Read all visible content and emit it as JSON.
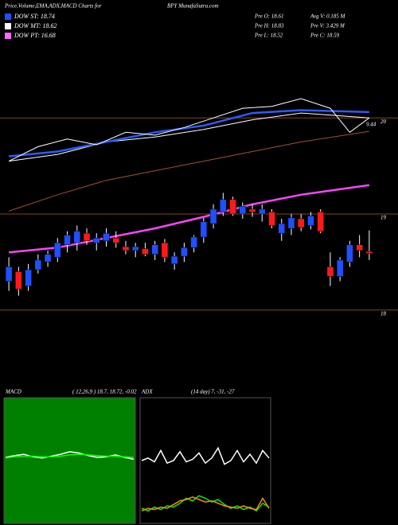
{
  "header": {
    "title": "Price,Volume,EMA,ADX,MACD Charts for",
    "site": "BPY MunafaSutra.com",
    "legend": [
      {
        "label": "DOW ST: 18.74",
        "color": "#1f4fff"
      },
      {
        "label": "DOW MT: 18.62",
        "color": "#ffffff"
      },
      {
        "label": "DOW PT: 16.68",
        "color": "#ff66ff"
      }
    ],
    "stats": [
      "Pre O: 18.61",
      "Avg V: 0.185 M",
      "Pre H: 18.83",
      "Pre V: 3.429 M",
      "Pre L: 18.52",
      "Pre C: 18.59"
    ]
  },
  "chart_data": [
    {
      "type": "candlestick",
      "up_color": "#1f4fff",
      "down_color": "#ff1a1a",
      "level_color": "#8b4513",
      "ylim": [
        17.75,
        20.73
      ],
      "yticks": [
        18,
        19,
        20
      ],
      "annotation": "9.44",
      "open": [
        18.3,
        18.4,
        18.25,
        18.42,
        18.5,
        18.55,
        18.68,
        18.7,
        18.8,
        18.7,
        18.72,
        18.75,
        18.66,
        18.62,
        18.64,
        18.58,
        18.7,
        18.48,
        18.56,
        18.65,
        18.76,
        18.9,
        19.02,
        19.15,
        19.0,
        19.05,
        19.0,
        19.02,
        18.8,
        18.85,
        18.95,
        18.88,
        19.02,
        18.45,
        18.35,
        18.5,
        18.68,
        18.61
      ],
      "high": [
        18.55,
        18.45,
        18.48,
        18.58,
        18.62,
        18.75,
        18.82,
        18.88,
        18.85,
        18.8,
        18.85,
        18.82,
        18.72,
        18.7,
        18.7,
        18.72,
        18.74,
        18.6,
        18.7,
        18.78,
        18.96,
        19.1,
        19.22,
        19.18,
        19.12,
        19.1,
        19.1,
        19.05,
        18.95,
        19.0,
        19.0,
        19.02,
        19.05,
        18.6,
        18.55,
        18.72,
        18.78,
        18.83
      ],
      "low": [
        18.2,
        18.15,
        18.2,
        18.38,
        18.45,
        18.5,
        18.6,
        18.62,
        18.68,
        18.62,
        18.66,
        18.65,
        18.58,
        18.55,
        18.56,
        18.52,
        18.5,
        18.42,
        18.5,
        18.6,
        18.7,
        18.85,
        18.98,
        18.98,
        18.95,
        18.97,
        18.92,
        18.85,
        18.72,
        18.78,
        18.82,
        18.84,
        18.8,
        18.25,
        18.3,
        18.45,
        18.55,
        18.52
      ],
      "close": [
        18.45,
        18.22,
        18.42,
        18.52,
        18.58,
        18.7,
        18.78,
        18.82,
        18.72,
        18.75,
        18.8,
        18.7,
        18.62,
        18.66,
        18.58,
        18.68,
        18.55,
        18.56,
        18.65,
        18.76,
        18.92,
        19.05,
        19.15,
        19.0,
        19.08,
        19.02,
        19.05,
        18.88,
        18.9,
        18.96,
        18.86,
        18.98,
        18.82,
        18.35,
        18.52,
        18.68,
        18.62,
        18.59
      ],
      "series": [
        {
          "color": "#ff44ff",
          "width": 2.5,
          "x": [
            0,
            5,
            10,
            15,
            20,
            25,
            30,
            37
          ],
          "values": [
            18.6,
            18.65,
            18.75,
            18.85,
            18.97,
            19.1,
            19.2,
            19.3
          ]
        },
        {
          "color": "#a0522d",
          "width": 1,
          "x": [
            0,
            5,
            10,
            15,
            20,
            25,
            30,
            37
          ],
          "values": [
            19.03,
            19.2,
            19.35,
            19.45,
            19.55,
            19.65,
            19.75,
            19.86
          ]
        },
        {
          "color": "#ffffff",
          "width": 1,
          "x": [
            0,
            5,
            10,
            15,
            20,
            25,
            30,
            37
          ],
          "values": [
            19.55,
            19.62,
            19.75,
            19.8,
            19.88,
            19.98,
            20.05,
            20.0
          ]
        },
        {
          "color": "#2a5cff",
          "width": 2.5,
          "x": [
            0,
            5,
            10,
            15,
            20,
            25,
            30,
            37
          ],
          "values": [
            19.6,
            19.65,
            19.75,
            19.85,
            19.92,
            20.05,
            20.08,
            20.06
          ]
        },
        {
          "color": "#ffffff",
          "width": 1,
          "x": [
            0,
            3,
            6,
            9,
            12,
            15,
            18,
            21,
            24,
            27,
            30,
            33,
            35,
            37
          ],
          "values": [
            19.55,
            19.7,
            19.78,
            19.72,
            19.85,
            19.82,
            19.9,
            20.0,
            20.1,
            20.12,
            20.2,
            20.1,
            19.85,
            20.0
          ]
        }
      ]
    },
    {
      "type": "line",
      "title": "MACD",
      "subtitle": "( 12,26,9 ) 18.7, 18.72, -0.02",
      "background": "#008000",
      "ylim": [
        -1,
        1
      ],
      "series": [
        {
          "color": "#ffffff",
          "values": [
            0.05,
            0.08,
            0.1,
            0.06,
            0.04,
            0.07,
            0.1,
            0.14,
            0.12,
            0.08,
            0.05,
            0.06,
            0.09,
            0.05,
            0.02
          ]
        },
        {
          "color": "#00ff00",
          "values": [
            0.04,
            0.06,
            0.07,
            0.07,
            0.06,
            0.06,
            0.07,
            0.09,
            0.1,
            0.09,
            0.08,
            0.07,
            0.07,
            0.06,
            0.05
          ]
        }
      ]
    },
    {
      "type": "line",
      "title": "ADX",
      "subtitle": "(14 day) 7, -31, -27",
      "background": "#000000",
      "ylim": [
        0,
        100
      ],
      "series": [
        {
          "color": "#ffffff",
          "values": [
            50,
            52,
            49,
            58,
            48,
            50,
            57,
            49,
            51,
            56,
            48,
            52,
            60,
            47,
            50,
            58,
            49,
            55,
            48,
            58,
            52
          ]
        },
        {
          "color": "#00ee00",
          "values": [
            12,
            10,
            13,
            11,
            14,
            13,
            16,
            20,
            18,
            22,
            20,
            17,
            19,
            15,
            12,
            14,
            11,
            13,
            10,
            16,
            13
          ]
        },
        {
          "color": "#ff8c00",
          "values": [
            10,
            12,
            11,
            13,
            12,
            15,
            18,
            19,
            21,
            19,
            17,
            18,
            16,
            14,
            13,
            12,
            14,
            12,
            11,
            20,
            12
          ]
        }
      ]
    }
  ]
}
